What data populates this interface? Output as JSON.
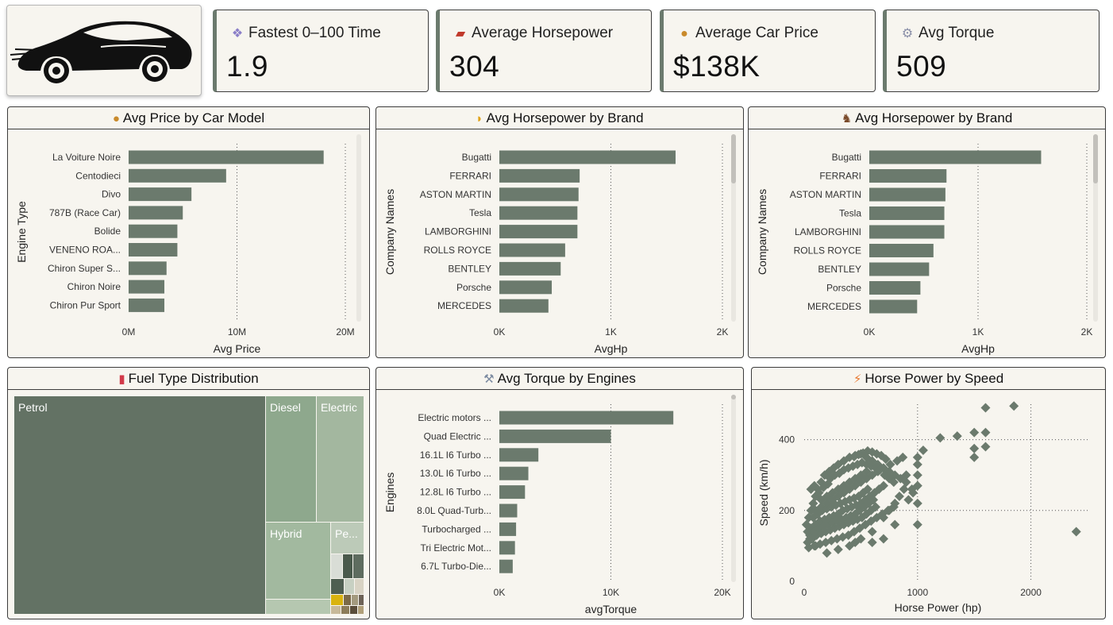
{
  "logo": {
    "icon": "car-silhouette-icon"
  },
  "kpis": [
    {
      "title": "Fastest 0–100 Time",
      "value": "1.9",
      "icon": "crystal-icon"
    },
    {
      "title": "Average Horsepower",
      "value": "304",
      "icon": "car-icon"
    },
    {
      "title": "Average Car Price",
      "value": "$138K",
      "icon": "money-bag-icon"
    },
    {
      "title": "Avg Torque",
      "value": "509",
      "icon": "gear-icon"
    }
  ],
  "panels": {
    "price": {
      "title": "Avg Price by Car Model",
      "icon": "money-bag-icon"
    },
    "hp1": {
      "title": "Avg Horsepower by Brand",
      "icon": "flexed-arm-icon"
    },
    "hp2": {
      "title": "Avg Horsepower by Brand",
      "icon": "horse-racing-icon"
    },
    "fuel": {
      "title": "Fuel Type Distribution",
      "icon": "fuel-pump-icon"
    },
    "torque": {
      "title": "Avg Torque by Engines",
      "icon": "wrench-icon"
    },
    "scatter": {
      "title": "Horse Power by Speed",
      "icon": "lightning-icon"
    }
  },
  "colors": {
    "bar": "#6b7a6d",
    "card": "#f7f5ef",
    "border": "#3c3c3c"
  },
  "chart_data": [
    {
      "id": "price",
      "type": "bar",
      "orientation": "horizontal",
      "title": "Avg Price by Car Model",
      "xlabel": "Avg Price",
      "ylabel": "Engine Type",
      "categories": [
        "La Voiture Noire",
        "Centodieci",
        "Divo",
        "787B (Race Car)",
        "Bolide",
        "VENENO ROA...",
        "Chiron Super S...",
        "Chiron Noire",
        "Chiron Pur Sport"
      ],
      "values": [
        18000000,
        9000000,
        5800000,
        5000000,
        4500000,
        4500000,
        3500000,
        3300000,
        3300000
      ],
      "xlim": [
        0,
        20000000
      ],
      "xticks": [
        0,
        10000000,
        20000000
      ],
      "xtick_labels": [
        "0M",
        "10M",
        "20M"
      ],
      "grid": true
    },
    {
      "id": "hp1",
      "type": "bar",
      "orientation": "horizontal",
      "title": "Avg Horsepower by Brand",
      "xlabel": "AvgHp",
      "ylabel": "Company Names",
      "categories": [
        "Bugatti",
        "FERRARI",
        "ASTON MARTIN",
        "Tesla",
        "LAMBORGHINI",
        "ROLLS ROYCE",
        "BENTLEY",
        "Porsche",
        "MERCEDES"
      ],
      "values": [
        1580,
        720,
        710,
        700,
        700,
        590,
        550,
        470,
        440
      ],
      "xlim": [
        0,
        2000
      ],
      "xticks": [
        0,
        1000,
        2000
      ],
      "xtick_labels": [
        "0K",
        "1K",
        "2K"
      ],
      "grid": true
    },
    {
      "id": "hp2",
      "type": "bar",
      "orientation": "horizontal",
      "title": "Avg Horsepower by Brand",
      "xlabel": "AvgHp",
      "ylabel": "Company Names",
      "categories": [
        "Bugatti",
        "FERRARI",
        "ASTON MARTIN",
        "Tesla",
        "LAMBORGHINI",
        "ROLLS ROYCE",
        "BENTLEY",
        "Porsche",
        "MERCEDES"
      ],
      "values": [
        1580,
        710,
        700,
        690,
        690,
        590,
        550,
        470,
        440
      ],
      "xlim": [
        0,
        2000
      ],
      "xticks": [
        0,
        1000,
        2000
      ],
      "xtick_labels": [
        "0K",
        "1K",
        "2K"
      ],
      "grid": true
    },
    {
      "id": "torque",
      "type": "bar",
      "orientation": "horizontal",
      "title": "Avg Torque by Engines",
      "xlabel": "avgTorque",
      "ylabel": "Engines",
      "categories": [
        "Electric motors ...",
        "Quad Electric ...",
        "16.1L I6 Turbo ...",
        "13.0L I6 Turbo ...",
        "12.8L I6 Turbo ...",
        "8.0L Quad-Turb...",
        "Turbocharged ...",
        "Tri Electric Mot...",
        "6.7L Turbo-Die..."
      ],
      "values": [
        15600,
        10000,
        3500,
        2600,
        2300,
        1600,
        1500,
        1400,
        1200
      ],
      "xlim": [
        0,
        20000
      ],
      "xticks": [
        0,
        10000,
        20000
      ],
      "xtick_labels": [
        "0K",
        "10K",
        "20K"
      ],
      "grid": true
    },
    {
      "id": "fuel",
      "type": "treemap",
      "title": "Fuel Type Distribution",
      "items": [
        {
          "name": "Petrol",
          "value": 66,
          "color": "#637264"
        },
        {
          "name": "Diesel",
          "value": 8,
          "color": "#8ea88d"
        },
        {
          "name": "Electric",
          "value": 8,
          "color": "#a3b79f"
        },
        {
          "name": "Hybrid",
          "value": 7,
          "color": "#a2b99f"
        },
        {
          "name": "Pe...",
          "value": 2,
          "color": "#bccab8"
        }
      ]
    },
    {
      "id": "scatter",
      "type": "scatter",
      "title": "Horse Power by Speed",
      "xlabel": "Horse Power (hp)",
      "ylabel": "Speed (km/h)",
      "xlim": [
        0,
        2500
      ],
      "ylim": [
        0,
        500
      ],
      "xticks": [
        0,
        1000,
        2000
      ],
      "yticks": [
        0,
        200,
        400
      ],
      "points": [
        [
          1200,
          405
        ],
        [
          1350,
          410
        ],
        [
          1500,
          420
        ],
        [
          1500,
          375
        ],
        [
          1500,
          350
        ],
        [
          1600,
          420
        ],
        [
          1600,
          380
        ],
        [
          1600,
          490
        ],
        [
          1850,
          495
        ],
        [
          2400,
          140
        ],
        [
          1000,
          350
        ],
        [
          1000,
          330
        ],
        [
          1000,
          300
        ],
        [
          1000,
          160
        ],
        [
          1050,
          370
        ],
        [
          1000,
          220
        ],
        [
          950,
          260
        ],
        [
          900,
          300
        ],
        [
          800,
          220
        ],
        [
          800,
          160
        ],
        [
          750,
          200
        ],
        [
          700,
          180
        ],
        [
          700,
          120
        ],
        [
          600,
          140
        ],
        [
          600,
          110
        ],
        [
          500,
          120
        ],
        [
          450,
          110
        ],
        [
          400,
          100
        ],
        [
          300,
          90
        ],
        [
          200,
          80
        ],
        [
          100,
          100
        ],
        [
          50,
          120
        ],
        [
          30,
          140
        ],
        [
          20,
          160
        ],
        [
          40,
          180
        ],
        [
          60,
          200
        ],
        [
          80,
          220
        ],
        [
          100,
          240
        ],
        [
          120,
          260
        ],
        [
          150,
          280
        ],
        [
          180,
          300
        ],
        [
          220,
          310
        ],
        [
          260,
          320
        ],
        [
          300,
          330
        ],
        [
          350,
          340
        ],
        [
          400,
          350
        ],
        [
          450,
          355
        ],
        [
          500,
          360
        ],
        [
          550,
          350
        ],
        [
          600,
          340
        ],
        [
          650,
          330
        ],
        [
          700,
          320
        ],
        [
          750,
          310
        ],
        [
          800,
          300
        ],
        [
          850,
          290
        ],
        [
          900,
          280
        ],
        [
          150,
          230
        ],
        [
          200,
          240
        ],
        [
          250,
          250
        ],
        [
          300,
          260
        ],
        [
          350,
          270
        ],
        [
          400,
          280
        ],
        [
          450,
          290
        ],
        [
          500,
          300
        ],
        [
          550,
          310
        ],
        [
          100,
          200
        ],
        [
          150,
          210
        ],
        [
          200,
          220
        ],
        [
          250,
          230
        ],
        [
          300,
          240
        ],
        [
          350,
          250
        ],
        [
          400,
          260
        ],
        [
          450,
          270
        ],
        [
          500,
          280
        ],
        [
          550,
          290
        ],
        [
          600,
          300
        ],
        [
          650,
          310
        ],
        [
          80,
          180
        ],
        [
          120,
          190
        ],
        [
          160,
          200
        ],
        [
          200,
          205
        ],
        [
          240,
          210
        ],
        [
          280,
          215
        ],
        [
          320,
          220
        ],
        [
          360,
          225
        ],
        [
          400,
          230
        ],
        [
          440,
          235
        ],
        [
          480,
          240
        ],
        [
          520,
          250
        ],
        [
          560,
          260
        ],
        [
          60,
          150
        ],
        [
          100,
          160
        ],
        [
          140,
          170
        ],
        [
          180,
          175
        ],
        [
          220,
          180
        ],
        [
          260,
          185
        ],
        [
          300,
          190
        ],
        [
          340,
          200
        ],
        [
          380,
          205
        ],
        [
          420,
          210
        ],
        [
          460,
          215
        ],
        [
          500,
          220
        ],
        [
          540,
          230
        ],
        [
          580,
          240
        ],
        [
          620,
          250
        ],
        [
          660,
          260
        ],
        [
          700,
          270
        ],
        [
          50,
          130
        ],
        [
          90,
          140
        ],
        [
          130,
          150
        ],
        [
          170,
          155
        ],
        [
          210,
          160
        ],
        [
          250,
          165
        ],
        [
          290,
          170
        ],
        [
          330,
          175
        ],
        [
          370,
          180
        ],
        [
          410,
          185
        ],
        [
          450,
          190
        ],
        [
          490,
          200
        ],
        [
          530,
          210
        ],
        [
          570,
          220
        ],
        [
          610,
          230
        ],
        [
          30,
          110
        ],
        [
          70,
          120
        ],
        [
          110,
          130
        ],
        [
          150,
          135
        ],
        [
          190,
          140
        ],
        [
          230,
          145
        ],
        [
          270,
          150
        ],
        [
          310,
          155
        ],
        [
          350,
          160
        ],
        [
          390,
          165
        ],
        [
          430,
          170
        ],
        [
          470,
          175
        ],
        [
          510,
          180
        ],
        [
          550,
          190
        ],
        [
          590,
          200
        ],
        [
          630,
          210
        ],
        [
          40,
          95
        ],
        [
          90,
          100
        ],
        [
          140,
          105
        ],
        [
          190,
          110
        ],
        [
          240,
          115
        ],
        [
          290,
          120
        ],
        [
          340,
          125
        ],
        [
          390,
          130
        ],
        [
          440,
          140
        ],
        [
          490,
          150
        ],
        [
          540,
          160
        ],
        [
          590,
          170
        ],
        [
          640,
          180
        ],
        [
          690,
          190
        ],
        [
          740,
          200
        ],
        [
          790,
          210
        ],
        [
          840,
          240
        ],
        [
          880,
          260
        ],
        [
          920,
          230
        ],
        [
          960,
          250
        ],
        [
          1000,
          270
        ],
        [
          760,
          330
        ],
        [
          820,
          340
        ],
        [
          870,
          350
        ],
        [
          720,
          345
        ],
        [
          680,
          355
        ],
        [
          640,
          360
        ],
        [
          600,
          365
        ],
        [
          560,
          368
        ],
        [
          520,
          362
        ],
        [
          480,
          358
        ],
        [
          440,
          352
        ],
        [
          60,
          260
        ],
        [
          90,
          270
        ],
        [
          130,
          250
        ],
        [
          170,
          265
        ],
        [
          210,
          275
        ],
        [
          230,
          290
        ],
        [
          270,
          300
        ],
        [
          310,
          305
        ],
        [
          350,
          315
        ],
        [
          390,
          320
        ],
        [
          430,
          325
        ],
        [
          470,
          330
        ],
        [
          510,
          335
        ],
        [
          550,
          330
        ],
        [
          590,
          325
        ],
        [
          630,
          320
        ],
        [
          670,
          315
        ],
        [
          710,
          300
        ],
        [
          750,
          290
        ],
        [
          790,
          280
        ]
      ],
      "grid": true
    }
  ]
}
